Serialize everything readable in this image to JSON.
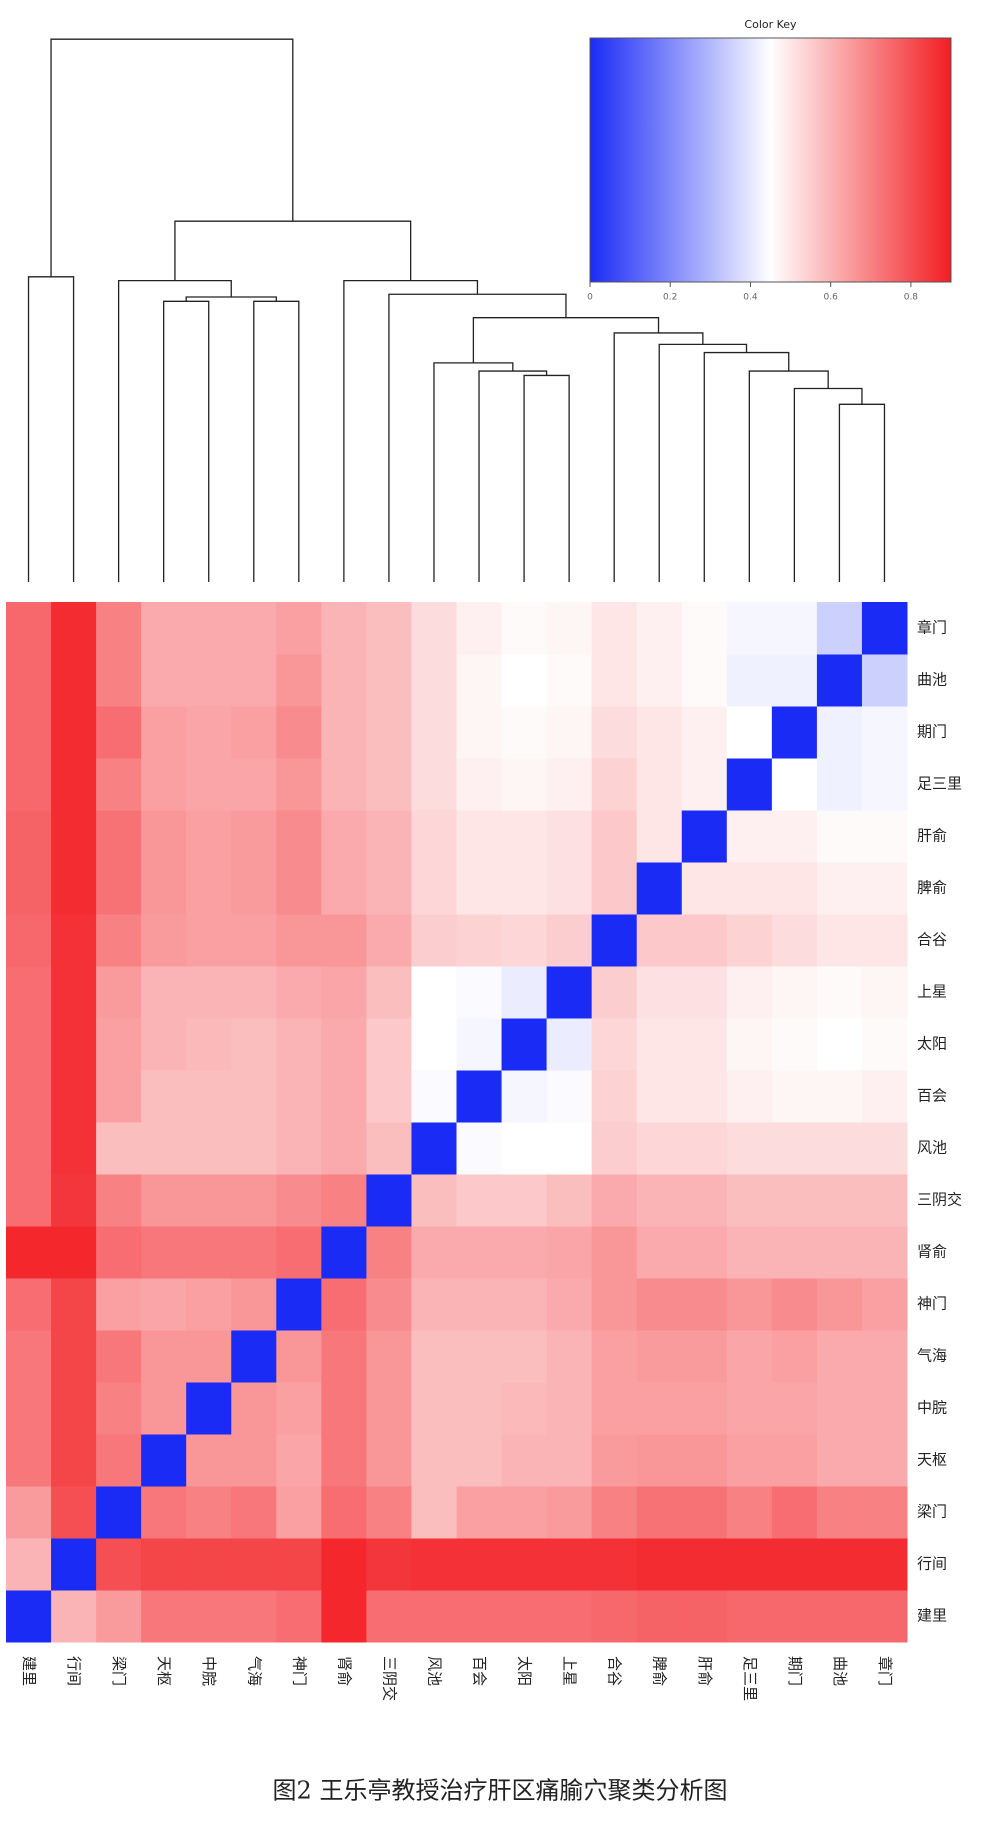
{
  "chart_data": {
    "type": "heatmap",
    "title": "图2 王乐亭教授治疗肝区痛腧穴聚类分析图",
    "categories": [
      "建里",
      "行间",
      "梁门",
      "天枢",
      "中脘",
      "气海",
      "神门",
      "肾俞",
      "三阴交",
      "风池",
      "百会",
      "太阳",
      "上星",
      "合谷",
      "脾俞",
      "肝俞",
      "足三里",
      "期门",
      "曲池",
      "章门"
    ],
    "values": [
      [
        0,
        0.6,
        0.65,
        0.72,
        0.72,
        0.72,
        0.74,
        0.88,
        0.74,
        0.74,
        0.74,
        0.74,
        0.74,
        0.75,
        0.76,
        0.76,
        0.75,
        0.75,
        0.75,
        0.75
      ],
      [
        0.6,
        0,
        0.8,
        0.82,
        0.82,
        0.82,
        0.82,
        0.88,
        0.85,
        0.86,
        0.86,
        0.86,
        0.86,
        0.86,
        0.87,
        0.87,
        0.87,
        0.87,
        0.87,
        0.87
      ],
      [
        0.65,
        0.8,
        0,
        0.72,
        0.7,
        0.72,
        0.64,
        0.74,
        0.7,
        0.58,
        0.64,
        0.64,
        0.65,
        0.7,
        0.73,
        0.73,
        0.7,
        0.74,
        0.7,
        0.7
      ],
      [
        0.72,
        0.82,
        0.72,
        0,
        0.66,
        0.66,
        0.63,
        0.72,
        0.66,
        0.58,
        0.58,
        0.6,
        0.6,
        0.65,
        0.66,
        0.66,
        0.64,
        0.64,
        0.62,
        0.62
      ],
      [
        0.72,
        0.82,
        0.7,
        0.66,
        0,
        0.66,
        0.64,
        0.72,
        0.66,
        0.58,
        0.58,
        0.59,
        0.6,
        0.64,
        0.64,
        0.64,
        0.63,
        0.63,
        0.62,
        0.62
      ],
      [
        0.72,
        0.82,
        0.72,
        0.66,
        0.66,
        0,
        0.66,
        0.72,
        0.66,
        0.58,
        0.58,
        0.58,
        0.6,
        0.64,
        0.65,
        0.65,
        0.63,
        0.64,
        0.62,
        0.62
      ],
      [
        0.74,
        0.82,
        0.64,
        0.63,
        0.64,
        0.66,
        0,
        0.74,
        0.68,
        0.6,
        0.6,
        0.6,
        0.62,
        0.66,
        0.68,
        0.68,
        0.66,
        0.68,
        0.66,
        0.64
      ],
      [
        0.88,
        0.88,
        0.74,
        0.72,
        0.72,
        0.72,
        0.74,
        0,
        0.7,
        0.62,
        0.62,
        0.62,
        0.63,
        0.66,
        0.62,
        0.62,
        0.6,
        0.6,
        0.6,
        0.6
      ],
      [
        0.74,
        0.85,
        0.7,
        0.66,
        0.66,
        0.66,
        0.68,
        0.7,
        0,
        0.58,
        0.56,
        0.56,
        0.58,
        0.62,
        0.6,
        0.6,
        0.58,
        0.58,
        0.58,
        0.58
      ],
      [
        0.74,
        0.86,
        0.58,
        0.58,
        0.58,
        0.58,
        0.6,
        0.62,
        0.58,
        0,
        0.44,
        0.45,
        0.45,
        0.55,
        0.53,
        0.53,
        0.52,
        0.52,
        0.52,
        0.52
      ],
      [
        0.74,
        0.86,
        0.64,
        0.58,
        0.58,
        0.58,
        0.6,
        0.62,
        0.56,
        0.44,
        0,
        0.43,
        0.44,
        0.54,
        0.5,
        0.5,
        0.48,
        0.47,
        0.47,
        0.48
      ],
      [
        0.74,
        0.86,
        0.64,
        0.6,
        0.59,
        0.58,
        0.6,
        0.62,
        0.56,
        0.45,
        0.43,
        0,
        0.41,
        0.53,
        0.5,
        0.5,
        0.47,
        0.46,
        0.45,
        0.46
      ],
      [
        0.74,
        0.86,
        0.65,
        0.6,
        0.6,
        0.6,
        0.62,
        0.63,
        0.58,
        0.45,
        0.44,
        0.41,
        0,
        0.55,
        0.51,
        0.51,
        0.48,
        0.47,
        0.46,
        0.47
      ],
      [
        0.75,
        0.86,
        0.7,
        0.65,
        0.64,
        0.64,
        0.66,
        0.66,
        0.62,
        0.55,
        0.54,
        0.53,
        0.55,
        0,
        0.56,
        0.56,
        0.54,
        0.52,
        0.5,
        0.5
      ],
      [
        0.76,
        0.87,
        0.73,
        0.66,
        0.64,
        0.65,
        0.68,
        0.62,
        0.6,
        0.53,
        0.5,
        0.5,
        0.51,
        0.56,
        0,
        0.5,
        0.5,
        0.5,
        0.48,
        0.48
      ],
      [
        0.76,
        0.87,
        0.73,
        0.66,
        0.64,
        0.65,
        0.68,
        0.62,
        0.6,
        0.53,
        0.5,
        0.5,
        0.51,
        0.56,
        0.5,
        0,
        0.48,
        0.48,
        0.46,
        0.46
      ],
      [
        0.75,
        0.87,
        0.7,
        0.64,
        0.63,
        0.63,
        0.66,
        0.6,
        0.58,
        0.52,
        0.48,
        0.47,
        0.48,
        0.54,
        0.5,
        0.48,
        0,
        0.45,
        0.42,
        0.43
      ],
      [
        0.75,
        0.87,
        0.74,
        0.64,
        0.63,
        0.64,
        0.68,
        0.6,
        0.58,
        0.52,
        0.47,
        0.46,
        0.47,
        0.52,
        0.5,
        0.48,
        0.45,
        0,
        0.42,
        0.43
      ],
      [
        0.75,
        0.87,
        0.7,
        0.62,
        0.62,
        0.62,
        0.66,
        0.6,
        0.58,
        0.52,
        0.47,
        0.45,
        0.46,
        0.5,
        0.48,
        0.46,
        0.42,
        0.42,
        0,
        0.35
      ],
      [
        0.75,
        0.87,
        0.7,
        0.62,
        0.62,
        0.62,
        0.64,
        0.6,
        0.58,
        0.52,
        0.48,
        0.46,
        0.47,
        0.5,
        0.48,
        0.46,
        0.43,
        0.43,
        0.35,
        0
      ]
    ],
    "colorscale": [
      "#1a2bf5",
      "#ffffff",
      "#f21d22"
    ],
    "color_key": {
      "title": "Color Key",
      "xlim": [
        0,
        0.9
      ],
      "xticks": [
        0,
        0.2,
        0.4,
        0.6,
        0.8
      ]
    },
    "dendrogram": [
      [
        11,
        12,
        0.379
      ],
      [
        10,
        20,
        0.387
      ],
      [
        9,
        21,
        0.402
      ],
      [
        18,
        19,
        0.326
      ],
      [
        17,
        23,
        0.355
      ],
      [
        16,
        24,
        0.387
      ],
      [
        15,
        25,
        0.421
      ],
      [
        14,
        26,
        0.436
      ],
      [
        13,
        27,
        0.457
      ],
      [
        22,
        28,
        0.485
      ],
      [
        8,
        29,
        0.528
      ],
      [
        7,
        30,
        0.553
      ],
      [
        3,
        4,
        0.515
      ],
      [
        5,
        6,
        0.515
      ],
      [
        32,
        33,
        0.523
      ],
      [
        2,
        34,
        0.553
      ],
      [
        35,
        31,
        0.662
      ],
      [
        0,
        1,
        0.56
      ],
      [
        37,
        36,
        0.996
      ]
    ]
  }
}
